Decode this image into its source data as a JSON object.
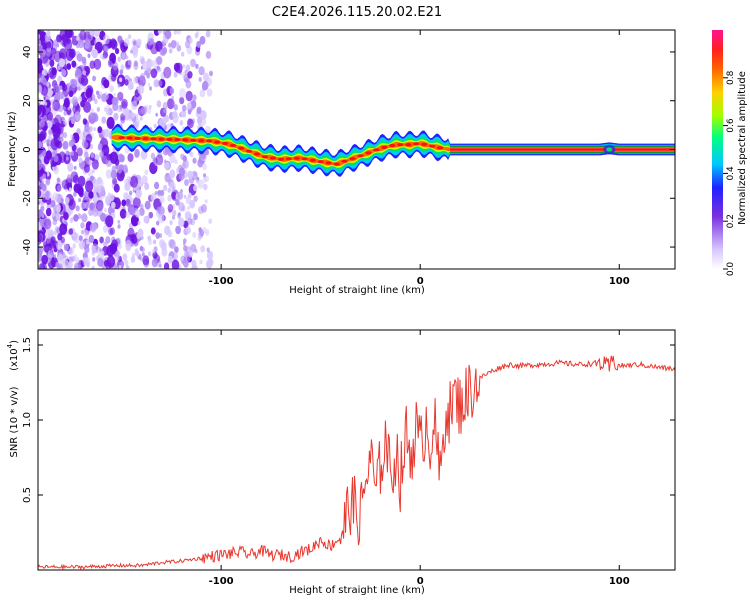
{
  "figure_title": "C2E4.2026.115.20.02.E21",
  "colors": {
    "signal_line": "#e8392f",
    "wave_green": "#00c000",
    "scatter_purple": "#7a30e0",
    "colorbar": [
      "#cccccc",
      "#b9a0ff",
      "#7a30e0",
      "#2020ff",
      "#00c8ff",
      "#00ff80",
      "#a0ff00",
      "#ffb000",
      "#ff2020",
      "#ff1493"
    ]
  },
  "chart_data": [
    {
      "type": "heatmap",
      "title": "C2E4.2026.115.20.02.E21",
      "xlabel": "Height of straight line (km)",
      "ylabel": "Frequency (Hz)",
      "xlim": [
        -192,
        128
      ],
      "ylim": [
        -49,
        49
      ],
      "xticks": [
        -100,
        0,
        100
      ],
      "xtick_labels": [
        "-100",
        "0",
        "100"
      ],
      "yticks": [
        -40,
        -20,
        0,
        20,
        40
      ],
      "ytick_labels": [
        "-40",
        "-20",
        "0",
        "20",
        "40"
      ],
      "noise_region_x": [
        -192,
        -105
      ],
      "ridge": {
        "x": [
          -155,
          -140,
          -120,
          -105,
          -95,
          -85,
          -78,
          -70,
          -60,
          -50,
          -42,
          -35,
          -28,
          -20,
          -12,
          -5,
          0,
          8,
          15,
          40,
          60,
          90,
          95,
          100,
          128
        ],
        "y": [
          5,
          4.5,
          4,
          3.5,
          2,
          -1,
          -3,
          -4,
          -3.5,
          -5,
          -6,
          -4,
          -2,
          0.5,
          2,
          2,
          2.5,
          1,
          0,
          0,
          0,
          0,
          0.5,
          0,
          0
        ]
      },
      "colorbar": {
        "label": "Normalized spectral amplitude",
        "range": [
          0,
          1
        ],
        "ticks": [
          0,
          0.2,
          0.4,
          0.6,
          0.8
        ],
        "tick_labels": [
          "0.0",
          "0.2",
          "0.4",
          "0.6",
          "0.8"
        ]
      }
    },
    {
      "type": "line",
      "xlabel": "Height of straight line (km)",
      "ylabel": "SNR (10 * v/v)",
      "y_multiplier": "(x10",
      "y_multiplier_exp": "4",
      "xlim": [
        -192,
        128
      ],
      "ylim": [
        0,
        1.6
      ],
      "xticks": [
        -100,
        0,
        100
      ],
      "xtick_labels": [
        "-100",
        "0",
        "100"
      ],
      "yticks": [
        0.5,
        1.0,
        1.5
      ],
      "ytick_labels": [
        "0.5",
        "1.0",
        "1.5"
      ],
      "series": [
        {
          "name": "SNR",
          "x": [
            -192,
            -170,
            -150,
            -140,
            -130,
            -120,
            -110,
            -100,
            -90,
            -85,
            -80,
            -75,
            -70,
            -65,
            -60,
            -55,
            -50,
            -45,
            -40,
            -35,
            -30,
            -28,
            -25,
            -22,
            -20,
            -17,
            -15,
            -12,
            -10,
            -7,
            -5,
            -2,
            0,
            3,
            5,
            7,
            10,
            13,
            15,
            17,
            20,
            25,
            30,
            35,
            40,
            45,
            50,
            60,
            70,
            80,
            90,
            95,
            97,
            100,
            110,
            120,
            128
          ],
          "y": [
            0.02,
            0.02,
            0.03,
            0.03,
            0.05,
            0.06,
            0.08,
            0.1,
            0.12,
            0.1,
            0.13,
            0.1,
            0.1,
            0.09,
            0.12,
            0.14,
            0.2,
            0.16,
            0.22,
            0.45,
            0.35,
            0.55,
            0.75,
            0.5,
            0.7,
            0.9,
            0.6,
            0.8,
            0.6,
            0.9,
            0.75,
            0.95,
            0.8,
            1.0,
            0.85,
            1.0,
            0.6,
            1.1,
            1.05,
            1.15,
            1.1,
            1.2,
            1.28,
            1.32,
            1.35,
            1.37,
            1.36,
            1.37,
            1.38,
            1.37,
            1.38,
            1.35,
            1.4,
            1.36,
            1.37,
            1.35,
            1.34
          ]
        }
      ]
    }
  ]
}
